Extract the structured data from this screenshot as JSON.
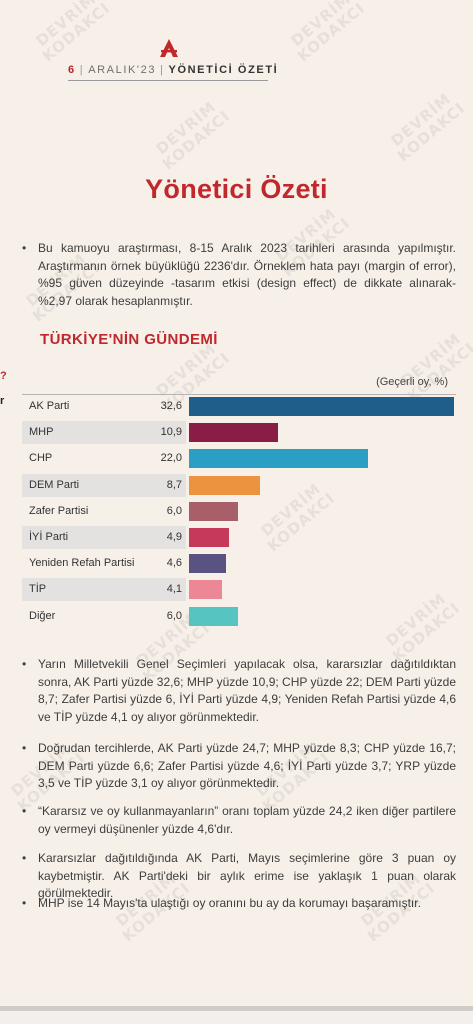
{
  "header": {
    "page_number": "6",
    "date": "ARALIK'23",
    "section": "YÖNETİCİ ÖZETİ"
  },
  "title": "Yönetici Özeti",
  "intro_bullet": "Bu kamuoyu araştırması, 8-15 Aralık 2023 tarihleri arasında yapılmıştır. Araştırmanın örnek büyüklüğü 2236'dır. Örneklem hata payı (margin of error), %95 güven düzeyinde -tasarım etkisi (design effect) de dikkate alınarak- %2,97 olarak hesaplanmıştır.",
  "subtitle": "TÜRKİYE'NİN GÜNDEMİ",
  "edge_marks": [
    "?",
    "r"
  ],
  "watermark": "DEVRİM\nKODAKCI",
  "chart_data": {
    "type": "bar",
    "orientation": "horizontal",
    "unit_label": "(Geçerli oy, %)",
    "categories": [
      "AK Parti",
      "MHP",
      "CHP",
      "DEM Parti",
      "Zafer Partisi",
      "İYİ Parti",
      "Yeniden Refah Partisi",
      "TİP",
      "Diğer"
    ],
    "values": [
      32.6,
      10.9,
      22.0,
      8.7,
      6.0,
      4.9,
      4.6,
      4.1,
      6.0
    ],
    "value_labels": [
      "32,6",
      "10,9",
      "22,0",
      "8,7",
      "6,0",
      "4,9",
      "4,6",
      "4,1",
      "6,0"
    ],
    "colors": [
      "#1f5e8a",
      "#8a1d45",
      "#2a9fc3",
      "#ec9340",
      "#a76069",
      "#c5395a",
      "#5a5382",
      "#ec8796",
      "#56c4c0"
    ],
    "xlim": [
      0,
      32.6
    ]
  },
  "bullets": [
    "Yarın Milletvekili Genel Seçimleri yapılacak olsa, kararsızlar dağıtıldıktan sonra, AK Parti yüzde 32,6; MHP yüzde 10,9; CHP yüzde 22; DEM Parti yüzde 8,7; Zafer Partisi yüzde 6, İYİ Parti yüzde 4,9; Yeniden Refah Partisi yüzde 4,6 ve TİP yüzde 4,1 oy alıyor görünmektedir.",
    "Doğrudan tercihlerde, AK Parti yüzde 24,7; MHP yüzde 8,3; CHP yüzde 16,7; DEM Parti yüzde 6,6; Zafer Partisi yüzde 4,6; İYİ Parti yüzde 3,7; YRP yüzde 3,5 ve TİP yüzde 3,1 oy alıyor görünmektedir.",
    "“Kararsız ve oy kullanmayanların” oranı toplam yüzde 24,2 iken diğer partilere oy vermeyi düşünenler yüzde 4,6'dır.",
    "Kararsızlar dağıtıldığında AK Parti, Mayıs seçimlerine göre 3 puan oy kaybetmiştir. AK Parti'deki bir aylık erime ise yaklaşık 1 puan olarak görülmektedir.",
    "MHP ise 14 Mayıs'ta ulaştığı oy oranını bu ay da korumayı başaramıştır."
  ]
}
